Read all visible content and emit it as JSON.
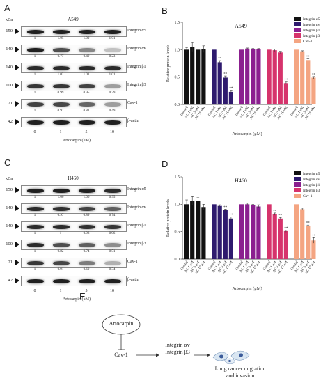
{
  "panels": {
    "a": {
      "letter": "A",
      "title": "A549",
      "mw_unit": "kDa",
      "xlabel": "Artocarpin (μM)",
      "doses": [
        "0",
        "1",
        "5",
        "10"
      ],
      "rows": [
        {
          "mw": "150",
          "protein": "Integrin α5",
          "quant": [
            "1",
            "1.05",
            "1.00",
            "1.01"
          ],
          "strength": [
            0.95,
            0.95,
            0.95,
            0.95
          ]
        },
        {
          "mw": "140",
          "protein": "Integrin αv",
          "quant": [
            "1",
            "0.77",
            "0.49",
            "0.23"
          ],
          "strength": [
            0.95,
            0.75,
            0.5,
            0.25
          ]
        },
        {
          "mw": "140",
          "protein": "Integrin β1",
          "quant": [
            "1",
            "1.02",
            "1.01",
            "1.01"
          ],
          "strength": [
            0.9,
            0.9,
            0.9,
            0.9
          ]
        },
        {
          "mw": "100",
          "protein": "Integrin β3",
          "quant": [
            "1",
            "0.99",
            "0.95",
            "0.39"
          ],
          "strength": [
            0.85,
            0.85,
            0.8,
            0.4
          ]
        },
        {
          "mw": "21",
          "protein": "Cav-1",
          "quant": [
            "1",
            "0.97",
            "0.81",
            "0.49"
          ],
          "strength": [
            0.8,
            0.78,
            0.65,
            0.4
          ]
        },
        {
          "mw": "42",
          "protein": "β-actin",
          "quant": [],
          "strength": [
            0.95,
            0.95,
            0.95,
            0.95
          ]
        }
      ]
    },
    "c": {
      "letter": "C",
      "title": "H460",
      "mw_unit": "kDa",
      "xlabel": "Artocarpin (μM)",
      "doses": [
        "0",
        "1",
        "5",
        "10"
      ],
      "rows": [
        {
          "mw": "150",
          "protein": "Integrin α5",
          "quant": [
            "1",
            "1.06",
            "1.06",
            "0.95"
          ],
          "strength": [
            0.95,
            0.95,
            0.95,
            0.9
          ]
        },
        {
          "mw": "140",
          "protein": "Integrin αv",
          "quant": [
            "1",
            "0.97",
            "0.89",
            "0.74"
          ],
          "strength": [
            0.9,
            0.88,
            0.8,
            0.68
          ]
        },
        {
          "mw": "140",
          "protein": "Integrin β1",
          "quant": [
            "1",
            "1",
            "0.98",
            "0.96"
          ],
          "strength": [
            0.9,
            0.9,
            0.88,
            0.86
          ]
        },
        {
          "mw": "100",
          "protein": "Integrin β3",
          "quant": [
            "1",
            "0.82",
            "0.74",
            "0.51"
          ],
          "strength": [
            0.9,
            0.75,
            0.68,
            0.48
          ]
        },
        {
          "mw": "21",
          "protein": "Cav-1",
          "quant": [
            "1",
            "0.91",
            "0.60",
            "0.34"
          ],
          "strength": [
            0.85,
            0.78,
            0.55,
            0.32
          ]
        },
        {
          "mw": "42",
          "protein": "β-actin",
          "quant": [],
          "strength": [
            0.95,
            0.95,
            0.95,
            0.95
          ]
        }
      ]
    },
    "e": {
      "letter": "E",
      "drug": "Artocarpin",
      "target": "Cav-1",
      "effectors": "Integrin αv\nIntegrin β3",
      "outcome": "Lung cancer migration\nand invasion"
    }
  },
  "chart_data": [
    {
      "panel": "B",
      "type": "bar",
      "title": "A549",
      "ylabel": "Relative protein levels",
      "xlabel": "Artocarpin (μM)",
      "ylim": [
        0.0,
        1.5
      ],
      "yticks": [
        "0.0",
        "0.5",
        "1.0",
        "1.5"
      ],
      "categories": [
        "Control",
        "AC 1 μM",
        "AC 5 μM",
        "AC 10 μM"
      ],
      "legend": {
        "placement": "top-right"
      },
      "significance": "**",
      "series": [
        {
          "name": "Integrin α5",
          "color": "#111111",
          "values": [
            1.0,
            1.05,
            1.0,
            1.01
          ],
          "errors": [
            0.04,
            0.08,
            0.05,
            0.06
          ],
          "sig": [
            false,
            false,
            false,
            false
          ]
        },
        {
          "name": "Integrin αv",
          "color": "#2e1a6e",
          "values": [
            1.0,
            0.77,
            0.49,
            0.23
          ],
          "errors": [
            0.0,
            0.03,
            0.03,
            0.03
          ],
          "sig": [
            false,
            true,
            true,
            true
          ]
        },
        {
          "name": "Integrin β1",
          "color": "#8b1f8f",
          "values": [
            1.0,
            1.02,
            1.01,
            1.01
          ],
          "errors": [
            0.0,
            0.01,
            0.01,
            0.01
          ],
          "sig": [
            false,
            false,
            false,
            false
          ]
        },
        {
          "name": "Integrin β3",
          "color": "#d6336c",
          "values": [
            1.0,
            0.99,
            0.95,
            0.39
          ],
          "errors": [
            0.0,
            0.02,
            0.02,
            0.02
          ],
          "sig": [
            false,
            false,
            false,
            true
          ]
        },
        {
          "name": "Cav-1",
          "color": "#f4a582",
          "values": [
            1.0,
            0.97,
            0.81,
            0.49
          ],
          "errors": [
            0.0,
            0.01,
            0.02,
            0.02
          ],
          "sig": [
            false,
            false,
            true,
            true
          ]
        }
      ]
    },
    {
      "panel": "D",
      "type": "bar",
      "title": "H460",
      "ylabel": "Relative protein levels",
      "xlabel": "Artocarpin (μM)",
      "ylim": [
        0.0,
        1.5
      ],
      "yticks": [
        "0.0",
        "0.5",
        "1.0",
        "1.5"
      ],
      "categories": [
        "Control",
        "AC 1 μM",
        "AC 5 μM",
        "AC 10 μM"
      ],
      "legend": {
        "placement": "top-right"
      },
      "significance": "**",
      "series": [
        {
          "name": "Integrin α5",
          "color": "#111111",
          "values": [
            1.0,
            1.06,
            1.06,
            0.95
          ],
          "errors": [
            0.08,
            0.08,
            0.06,
            0.05
          ],
          "sig": [
            false,
            false,
            false,
            false
          ]
        },
        {
          "name": "Integrin αv",
          "color": "#2e1a6e",
          "values": [
            1.0,
            0.97,
            0.89,
            0.74
          ],
          "errors": [
            0.0,
            0.02,
            0.02,
            0.03
          ],
          "sig": [
            false,
            false,
            true,
            true
          ]
        },
        {
          "name": "Integrin β1",
          "color": "#8b1f8f",
          "values": [
            1.0,
            1.0,
            0.98,
            0.96
          ],
          "errors": [
            0.0,
            0.02,
            0.02,
            0.03
          ],
          "sig": [
            false,
            false,
            false,
            false
          ]
        },
        {
          "name": "Integrin β3",
          "color": "#d6336c",
          "values": [
            1.0,
            0.82,
            0.74,
            0.51
          ],
          "errors": [
            0.0,
            0.02,
            0.02,
            0.02
          ],
          "sig": [
            false,
            true,
            true,
            true
          ]
        },
        {
          "name": "Cav-1",
          "color": "#f4a582",
          "values": [
            1.0,
            0.91,
            0.6,
            0.34
          ],
          "errors": [
            0.0,
            0.02,
            0.02,
            0.05
          ],
          "sig": [
            false,
            false,
            true,
            true
          ]
        }
      ]
    }
  ]
}
